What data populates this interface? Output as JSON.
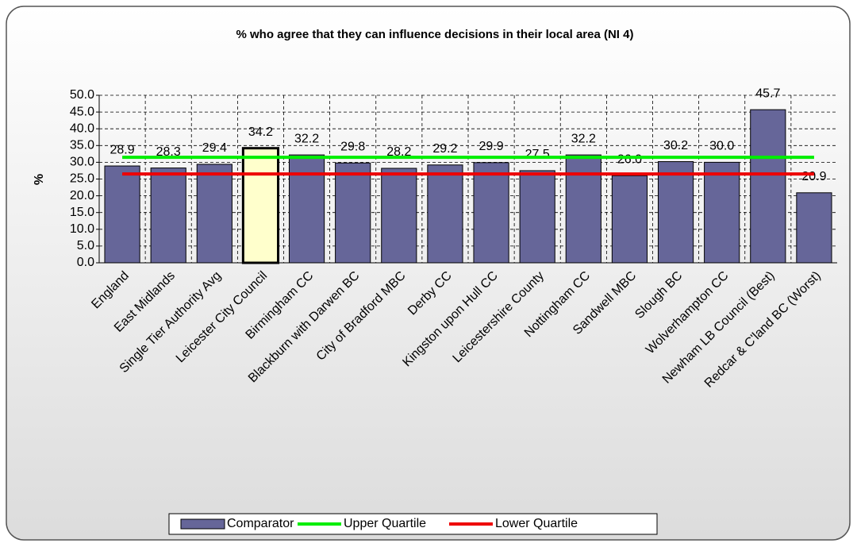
{
  "chart_data": {
    "type": "bar",
    "title": "%  who agree that they can influence decisions in their local area (NI 4)",
    "y_label": "%",
    "categories": [
      "England",
      "East Midlands",
      "Single Tier Authority Avg",
      "Leicester City Council",
      "Birmingham CC",
      "Blackburn with Darwen BC",
      "City of Bradford MBC",
      "Derby CC",
      "Kingston upon Hull CC",
      "Leicestershire County",
      "Nottingham CC",
      "Sandwell MBC",
      "Slough BC",
      "Wolverhampton CC",
      "Newham LB Council (Best)",
      "Redcar & C'land BC (Worst)"
    ],
    "series": [
      {
        "name": "Comparator",
        "type": "bar",
        "color": "#666699",
        "colors": [
          "#666699",
          "#666699",
          "#666699",
          "#ffffcc",
          "#666699",
          "#666699",
          "#666699",
          "#666699",
          "#666699",
          "#666699",
          "#666699",
          "#666699",
          "#666699",
          "#666699",
          "#666699",
          "#666699"
        ],
        "values": [
          28.9,
          28.3,
          29.4,
          34.2,
          32.2,
          29.8,
          28.2,
          29.2,
          29.9,
          27.5,
          32.2,
          26.0,
          30.2,
          30.0,
          45.7,
          20.9
        ],
        "value_labels": [
          "28.9",
          "28.3",
          "29.4",
          "34.2",
          "32.2",
          "29.8",
          "28.2",
          "29.2",
          "29.9",
          "27.5",
          "32.2",
          "26.0",
          "30.2",
          "30.0",
          "45.7",
          "20.9"
        ]
      },
      {
        "name": "Upper Quartile",
        "type": "line",
        "color": "#00ee00",
        "values": [
          31.5,
          31.5,
          31.5,
          31.5,
          31.5,
          31.5,
          31.5,
          31.5,
          31.5,
          31.5,
          31.5,
          31.5,
          31.5,
          31.5,
          31.5,
          31.5
        ]
      },
      {
        "name": "Lower Quartile",
        "type": "line",
        "color": "#ee0000",
        "values": [
          26.5,
          26.5,
          26.5,
          26.5,
          26.5,
          26.5,
          26.5,
          26.5,
          26.5,
          26.5,
          26.5,
          26.5,
          26.5,
          26.5,
          26.5,
          26.5
        ]
      }
    ],
    "ylim": [
      0,
      50
    ],
    "yticks": [
      {
        "value": 0,
        "label": "0.0"
      },
      {
        "value": 5,
        "label": "5.0"
      },
      {
        "value": 10,
        "label": "10.0"
      },
      {
        "value": 15,
        "label": "15.0"
      },
      {
        "value": 20,
        "label": "20.0"
      },
      {
        "value": 25,
        "label": "25.0"
      },
      {
        "value": 30,
        "label": "30.0"
      },
      {
        "value": 35,
        "label": "35.0"
      },
      {
        "value": 40,
        "label": "40.0"
      },
      {
        "value": 45,
        "label": "45.0"
      },
      {
        "value": 50,
        "label": "50.0"
      }
    ],
    "grid": true,
    "legend": "bottom"
  }
}
